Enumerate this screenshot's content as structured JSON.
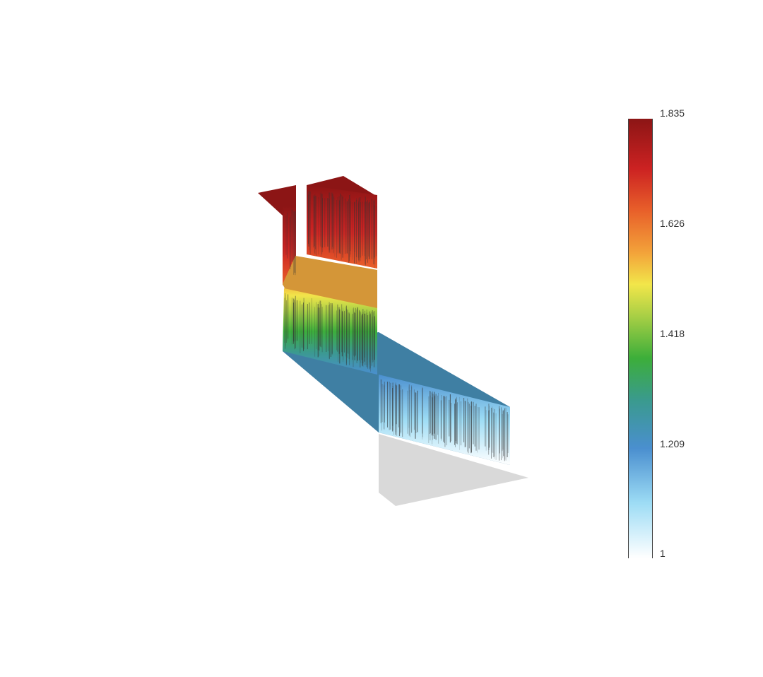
{
  "chart_data": {
    "type": "surface3d",
    "colorscale": {
      "min": 1,
      "max": 1.835,
      "tick_labels": [
        "1.835",
        "1.626",
        "1.418",
        "1.209",
        "1"
      ],
      "tick_values": [
        1.835,
        1.626,
        1.418,
        1.209,
        1
      ],
      "stops": [
        {
          "value": 1.0,
          "color": "#ffffff"
        },
        {
          "value": 1.105,
          "color": "#9ddcf5"
        },
        {
          "value": 1.209,
          "color": "#4a8fcf"
        },
        {
          "value": 1.3,
          "color": "#3a9a8e"
        },
        {
          "value": 1.38,
          "color": "#3cae3a"
        },
        {
          "value": 1.46,
          "color": "#a8cf45"
        },
        {
          "value": 1.52,
          "color": "#f2e64a"
        },
        {
          "value": 1.58,
          "color": "#f3a33a"
        },
        {
          "value": 1.66,
          "color": "#e8602a"
        },
        {
          "value": 1.74,
          "color": "#cc2222"
        },
        {
          "value": 1.835,
          "color": "#8c1515"
        }
      ]
    },
    "surface_colors": {
      "top": "#8c1515",
      "plateau": "#d49638",
      "ramp": "#3f7fa3",
      "floor": "#d9d9d9",
      "streak": "#333333"
    }
  }
}
